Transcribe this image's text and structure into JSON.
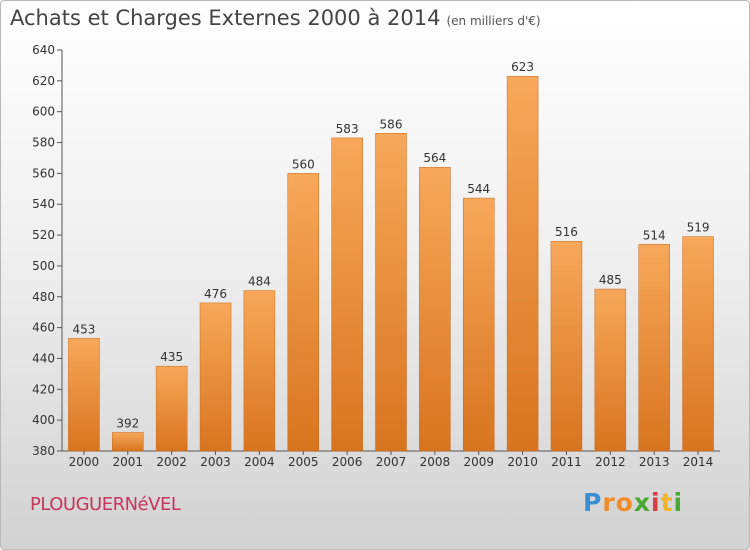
{
  "header": {
    "title": "Achats et Charges Externes 2000 à 2014",
    "unit": "(en milliers d'€)"
  },
  "footer": {
    "commune": "PLOUGUERNéVEL",
    "brand_letters": [
      "P",
      "r",
      "o",
      "x",
      "i",
      "t",
      "i"
    ],
    "brand_colors": [
      "#3a8fd1",
      "#f28c28",
      "#f28c28",
      "#4aa832",
      "#d93c3c",
      "#f2b52a",
      "#4aa832"
    ]
  },
  "colors": {
    "bar_top": "#f7a85a",
    "bar_bottom": "#d8741f",
    "commune": "#c8345a"
  },
  "chart_data": {
    "type": "bar",
    "title": "Achats et Charges Externes 2000 à 2014",
    "xlabel": "",
    "ylabel": "",
    "categories": [
      "2000",
      "2001",
      "2002",
      "2003",
      "2004",
      "2005",
      "2006",
      "2007",
      "2008",
      "2009",
      "2010",
      "2011",
      "2012",
      "2013",
      "2014"
    ],
    "values": [
      453,
      392,
      435,
      476,
      484,
      560,
      583,
      586,
      564,
      544,
      623,
      516,
      485,
      514,
      519
    ],
    "ylim": [
      380,
      640
    ],
    "yticks": [
      380,
      400,
      420,
      440,
      460,
      480,
      500,
      520,
      540,
      560,
      580,
      600,
      620,
      640
    ],
    "grid": false,
    "legend": "none"
  }
}
